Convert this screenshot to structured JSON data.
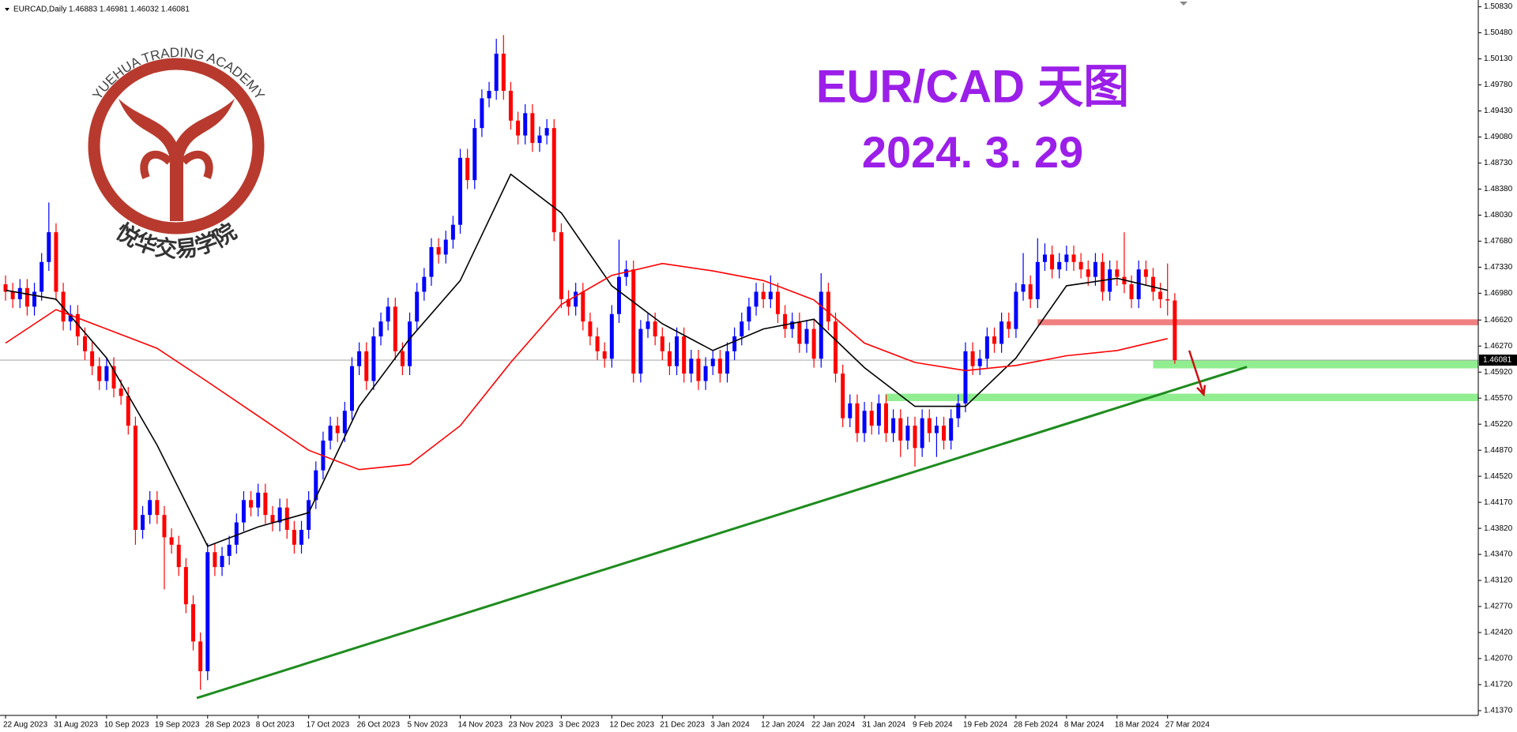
{
  "chart_data": {
    "type": "candlestick",
    "header": "EURCAD,Daily  1.46883 1.46981 1.46032 1.46081",
    "title": "EUR/CAD 天图",
    "subtitle": "2024. 3. 29",
    "up_color": "#0000ff",
    "down_color": "#ff0000",
    "ylim": [
      1.41306,
      1.50921
    ],
    "yticks": [
      {
        "value": 1.4137,
        "label": "1.41370"
      },
      {
        "value": 1.4172,
        "label": "1.41720"
      },
      {
        "value": 1.4207,
        "label": "1.42070"
      },
      {
        "value": 1.4242,
        "label": "1.42420"
      },
      {
        "value": 1.4277,
        "label": "1.42770"
      },
      {
        "value": 1.4312,
        "label": "1.43120"
      },
      {
        "value": 1.4347,
        "label": "1.43470"
      },
      {
        "value": 1.4382,
        "label": "1.43820"
      },
      {
        "value": 1.4417,
        "label": "1.44170"
      },
      {
        "value": 1.4452,
        "label": "1.44520"
      },
      {
        "value": 1.4487,
        "label": "1.44870"
      },
      {
        "value": 1.4522,
        "label": "1.45220"
      },
      {
        "value": 1.4557,
        "label": "1.45570"
      },
      {
        "value": 1.4592,
        "label": "1.45920"
      },
      {
        "value": 1.4627,
        "label": "1.46270"
      },
      {
        "value": 1.4662,
        "label": "1.46620"
      },
      {
        "value": 1.4698,
        "label": "1.46980"
      },
      {
        "value": 1.4733,
        "label": "1.47330"
      },
      {
        "value": 1.4768,
        "label": "1.47680"
      },
      {
        "value": 1.4803,
        "label": "1.48030"
      },
      {
        "value": 1.4838,
        "label": "1.48380"
      },
      {
        "value": 1.4873,
        "label": "1.48730"
      },
      {
        "value": 1.4908,
        "label": "1.49080"
      },
      {
        "value": 1.4943,
        "label": "1.49430"
      },
      {
        "value": 1.4978,
        "label": "1.49780"
      },
      {
        "value": 1.5013,
        "label": "1.50130"
      },
      {
        "value": 1.5048,
        "label": "1.50480"
      },
      {
        "value": 1.5083,
        "label": "1.50830"
      }
    ],
    "dates": [
      "22 Aug 2023",
      "31 Aug 2023",
      "10 Sep 2023",
      "19 Sep 2023",
      "28 Sep 2023",
      "8 Oct 2023",
      "17 Oct 2023",
      "26 Oct 2023",
      "5 Nov 2023",
      "14 Nov 2023",
      "23 Nov 2023",
      "3 Dec 2023",
      "12 Dec 2023",
      "21 Dec 2023",
      "3 Jan 2024",
      "12 Jan 2024",
      "22 Jan 2024",
      "31 Jan 2024",
      "9 Feb 2024",
      "19 Feb 2024",
      "28 Feb 2024",
      "8 Mar 2024",
      "18 Mar 2024",
      "27 Mar 2024"
    ],
    "candles": [
      [
        1.471,
        1.4722,
        1.4688,
        1.47
      ],
      [
        1.47,
        1.4712,
        1.4678,
        1.469
      ],
      [
        1.469,
        1.4717,
        1.4678,
        1.4705
      ],
      [
        1.4705,
        1.4717,
        1.4668,
        1.468
      ],
      [
        1.468,
        1.4712,
        1.4668,
        1.47
      ],
      [
        1.47,
        1.4752,
        1.4688,
        1.474
      ],
      [
        1.474,
        1.482,
        1.4728,
        1.478
      ],
      [
        1.478,
        1.4792,
        1.4688,
        1.47
      ],
      [
        1.47,
        1.4712,
        1.4648,
        1.466
      ],
      [
        1.466,
        1.4682,
        1.4648,
        1.467
      ],
      [
        1.467,
        1.4682,
        1.4628,
        1.464
      ],
      [
        1.464,
        1.4652,
        1.4608,
        1.462
      ],
      [
        1.462,
        1.4632,
        1.4588,
        1.46
      ],
      [
        1.46,
        1.4612,
        1.4568,
        1.458
      ],
      [
        1.458,
        1.4612,
        1.4568,
        1.46
      ],
      [
        1.46,
        1.4612,
        1.4558,
        1.457
      ],
      [
        1.457,
        1.4582,
        1.4548,
        1.456
      ],
      [
        1.456,
        1.4572,
        1.4508,
        1.452
      ],
      [
        1.452,
        1.4532,
        1.436,
        1.438
      ],
      [
        1.438,
        1.4412,
        1.4368,
        1.44
      ],
      [
        1.44,
        1.4432,
        1.4388,
        1.442
      ],
      [
        1.442,
        1.4432,
        1.4388,
        1.44
      ],
      [
        1.44,
        1.4412,
        1.43,
        1.437
      ],
      [
        1.437,
        1.4382,
        1.4348,
        1.436
      ],
      [
        1.436,
        1.4372,
        1.4318,
        1.433
      ],
      [
        1.433,
        1.4342,
        1.4268,
        1.428
      ],
      [
        1.428,
        1.4292,
        1.4218,
        1.423
      ],
      [
        1.423,
        1.4242,
        1.4165,
        1.419
      ],
      [
        1.419,
        1.4362,
        1.4178,
        1.435
      ],
      [
        1.435,
        1.4362,
        1.4318,
        1.433
      ],
      [
        1.433,
        1.4357,
        1.4318,
        1.4345
      ],
      [
        1.4345,
        1.4372,
        1.4333,
        1.436
      ],
      [
        1.436,
        1.4402,
        1.4348,
        1.439
      ],
      [
        1.439,
        1.4432,
        1.4378,
        1.442
      ],
      [
        1.442,
        1.4432,
        1.4398,
        1.441
      ],
      [
        1.441,
        1.4442,
        1.4398,
        1.443
      ],
      [
        1.443,
        1.4442,
        1.4388,
        1.44
      ],
      [
        1.44,
        1.4412,
        1.4378,
        1.439
      ],
      [
        1.439,
        1.4422,
        1.4378,
        1.441
      ],
      [
        1.441,
        1.4422,
        1.4368,
        1.438
      ],
      [
        1.438,
        1.4392,
        1.4348,
        1.436
      ],
      [
        1.436,
        1.4392,
        1.4348,
        1.438
      ],
      [
        1.438,
        1.4432,
        1.4368,
        1.442
      ],
      [
        1.442,
        1.4472,
        1.4408,
        1.446
      ],
      [
        1.446,
        1.4512,
        1.4448,
        1.45
      ],
      [
        1.45,
        1.4532,
        1.4488,
        1.452
      ],
      [
        1.452,
        1.4532,
        1.4498,
        1.451
      ],
      [
        1.451,
        1.4552,
        1.4498,
        1.454
      ],
      [
        1.454,
        1.4612,
        1.4528,
        1.46
      ],
      [
        1.46,
        1.4632,
        1.4588,
        1.462
      ],
      [
        1.462,
        1.4632,
        1.4568,
        1.458
      ],
      [
        1.458,
        1.4652,
        1.4568,
        1.464
      ],
      [
        1.464,
        1.4672,
        1.4628,
        1.466
      ],
      [
        1.466,
        1.4692,
        1.4648,
        1.468
      ],
      [
        1.468,
        1.4692,
        1.4608,
        1.462
      ],
      [
        1.462,
        1.4632,
        1.4588,
        1.46
      ],
      [
        1.46,
        1.4672,
        1.4588,
        1.466
      ],
      [
        1.466,
        1.4712,
        1.4648,
        1.47
      ],
      [
        1.47,
        1.4732,
        1.4688,
        1.472
      ],
      [
        1.472,
        1.4772,
        1.4708,
        1.476
      ],
      [
        1.476,
        1.4772,
        1.4738,
        1.475
      ],
      [
        1.475,
        1.4782,
        1.4738,
        1.477
      ],
      [
        1.477,
        1.4802,
        1.4758,
        1.479
      ],
      [
        1.479,
        1.4892,
        1.4778,
        1.488
      ],
      [
        1.488,
        1.4892,
        1.4838,
        1.485
      ],
      [
        1.485,
        1.4932,
        1.4838,
        1.492
      ],
      [
        1.492,
        1.4972,
        1.4908,
        1.496
      ],
      [
        1.496,
        1.4982,
        1.4948,
        1.497
      ],
      [
        1.497,
        1.504,
        1.4958,
        1.502
      ],
      [
        1.502,
        1.5045,
        1.4958,
        1.497
      ],
      [
        1.497,
        1.4982,
        1.4918,
        1.493
      ],
      [
        1.493,
        1.4942,
        1.4898,
        1.491
      ],
      [
        1.491,
        1.4952,
        1.4898,
        1.494
      ],
      [
        1.494,
        1.4952,
        1.4888,
        1.49
      ],
      [
        1.49,
        1.4922,
        1.4888,
        1.491
      ],
      [
        1.491,
        1.4932,
        1.4898,
        1.492
      ],
      [
        1.492,
        1.4932,
        1.4768,
        1.478
      ],
      [
        1.478,
        1.4792,
        1.4678,
        1.469
      ],
      [
        1.469,
        1.4702,
        1.4668,
        1.468
      ],
      [
        1.468,
        1.4712,
        1.4668,
        1.47
      ],
      [
        1.47,
        1.4712,
        1.4648,
        1.466
      ],
      [
        1.466,
        1.4672,
        1.4628,
        1.464
      ],
      [
        1.464,
        1.4652,
        1.4608,
        1.462
      ],
      [
        1.462,
        1.4632,
        1.4598,
        1.461
      ],
      [
        1.461,
        1.4682,
        1.4598,
        1.467
      ],
      [
        1.467,
        1.477,
        1.4658,
        1.472
      ],
      [
        1.472,
        1.4742,
        1.4708,
        1.473
      ],
      [
        1.473,
        1.4742,
        1.4578,
        1.459
      ],
      [
        1.459,
        1.4662,
        1.4578,
        1.465
      ],
      [
        1.465,
        1.4672,
        1.4638,
        1.466
      ],
      [
        1.466,
        1.4672,
        1.4628,
        1.464
      ],
      [
        1.464,
        1.4652,
        1.4608,
        1.462
      ],
      [
        1.462,
        1.4632,
        1.4588,
        1.46
      ],
      [
        1.46,
        1.4652,
        1.4588,
        1.464
      ],
      [
        1.464,
        1.4652,
        1.4578,
        1.459
      ],
      [
        1.459,
        1.4622,
        1.4578,
        1.461
      ],
      [
        1.461,
        1.4622,
        1.4568,
        1.458
      ],
      [
        1.458,
        1.4612,
        1.4568,
        1.46
      ],
      [
        1.46,
        1.4622,
        1.4588,
        1.461
      ],
      [
        1.461,
        1.4622,
        1.4578,
        1.459
      ],
      [
        1.459,
        1.4632,
        1.4578,
        1.462
      ],
      [
        1.462,
        1.4652,
        1.4608,
        1.464
      ],
      [
        1.464,
        1.4672,
        1.4628,
        1.466
      ],
      [
        1.466,
        1.4692,
        1.4648,
        1.468
      ],
      [
        1.468,
        1.4712,
        1.4668,
        1.47
      ],
      [
        1.47,
        1.4712,
        1.4678,
        1.469
      ],
      [
        1.469,
        1.4722,
        1.4678,
        1.47
      ],
      [
        1.47,
        1.4712,
        1.4658,
        1.467
      ],
      [
        1.467,
        1.4682,
        1.4638,
        1.465
      ],
      [
        1.465,
        1.4672,
        1.4638,
        1.466
      ],
      [
        1.466,
        1.4672,
        1.4618,
        1.463
      ],
      [
        1.463,
        1.4662,
        1.4618,
        1.465
      ],
      [
        1.465,
        1.4662,
        1.4598,
        1.461
      ],
      [
        1.461,
        1.4725,
        1.4598,
        1.47
      ],
      [
        1.47,
        1.4712,
        1.4648,
        1.466
      ],
      [
        1.466,
        1.4672,
        1.4578,
        1.459
      ],
      [
        1.459,
        1.4602,
        1.4518,
        1.453
      ],
      [
        1.453,
        1.4562,
        1.4518,
        1.455
      ],
      [
        1.455,
        1.4562,
        1.4498,
        1.451
      ],
      [
        1.451,
        1.4552,
        1.4498,
        1.454
      ],
      [
        1.454,
        1.4552,
        1.4508,
        1.452
      ],
      [
        1.452,
        1.4562,
        1.4508,
        1.455
      ],
      [
        1.455,
        1.4562,
        1.4498,
        1.451
      ],
      [
        1.451,
        1.4542,
        1.4498,
        1.453
      ],
      [
        1.453,
        1.4542,
        1.4478,
        1.45
      ],
      [
        1.45,
        1.4532,
        1.4488,
        1.452
      ],
      [
        1.452,
        1.4532,
        1.4465,
        1.449
      ],
      [
        1.449,
        1.4542,
        1.4478,
        1.453
      ],
      [
        1.453,
        1.4542,
        1.4498,
        1.451
      ],
      [
        1.451,
        1.4532,
        1.4478,
        1.452
      ],
      [
        1.452,
        1.4532,
        1.4488,
        1.45
      ],
      [
        1.45,
        1.4542,
        1.4488,
        1.453
      ],
      [
        1.453,
        1.4562,
        1.4518,
        1.455
      ],
      [
        1.455,
        1.4632,
        1.4538,
        1.462
      ],
      [
        1.462,
        1.4632,
        1.4588,
        1.46
      ],
      [
        1.46,
        1.4622,
        1.4588,
        1.461
      ],
      [
        1.461,
        1.4652,
        1.4598,
        1.464
      ],
      [
        1.464,
        1.4652,
        1.4618,
        1.463
      ],
      [
        1.463,
        1.4672,
        1.4618,
        1.466
      ],
      [
        1.466,
        1.4672,
        1.4638,
        1.465
      ],
      [
        1.465,
        1.4712,
        1.4638,
        1.47
      ],
      [
        1.47,
        1.4752,
        1.4688,
        1.471
      ],
      [
        1.471,
        1.4722,
        1.4678,
        1.469
      ],
      [
        1.469,
        1.4772,
        1.4678,
        1.474
      ],
      [
        1.474,
        1.4765,
        1.4728,
        1.475
      ],
      [
        1.475,
        1.4762,
        1.4718,
        1.473
      ],
      [
        1.473,
        1.4752,
        1.4718,
        1.474
      ],
      [
        1.474,
        1.4762,
        1.4728,
        1.475
      ],
      [
        1.475,
        1.4762,
        1.4728,
        1.474
      ],
      [
        1.474,
        1.4752,
        1.4718,
        1.473
      ],
      [
        1.473,
        1.4742,
        1.4708,
        1.472
      ],
      [
        1.472,
        1.4752,
        1.4708,
        1.474
      ],
      [
        1.474,
        1.4752,
        1.4688,
        1.47
      ],
      [
        1.47,
        1.4742,
        1.4688,
        1.473
      ],
      [
        1.473,
        1.4742,
        1.4708,
        1.472
      ],
      [
        1.472,
        1.478,
        1.4698,
        1.471
      ],
      [
        1.471,
        1.4722,
        1.4678,
        1.469
      ],
      [
        1.469,
        1.4742,
        1.4678,
        1.473
      ],
      [
        1.473,
        1.4742,
        1.4708,
        1.472
      ],
      [
        1.472,
        1.4732,
        1.4688,
        1.47
      ],
      [
        1.47,
        1.4712,
        1.4678,
        1.469
      ],
      [
        1.469,
        1.4738,
        1.4668,
        1.46883
      ],
      [
        1.46883,
        1.46981,
        1.46032,
        1.46081
      ]
    ],
    "series": [
      {
        "color": "#000000",
        "values": [
          1.4702,
          1.469,
          1.4611,
          1.4494,
          1.4358,
          1.4384,
          1.4403,
          1.4546,
          1.4637,
          1.4715,
          1.4858,
          1.4806,
          1.4708,
          1.4657,
          1.4621,
          1.465,
          1.4663,
          1.4598,
          1.4546,
          1.4546,
          1.4611,
          1.4708,
          1.4718,
          1.4702
        ]
      },
      {
        "color": "#ff0000",
        "values": [
          1.4631,
          1.4676,
          1.465,
          1.4624,
          1.4579,
          1.4533,
          1.4487,
          1.4461,
          1.4468,
          1.452,
          1.4605,
          1.4683,
          1.4722,
          1.4738,
          1.4728,
          1.4715,
          1.4689,
          1.4631,
          1.4605,
          1.4594,
          1.4601,
          1.4614,
          1.4621,
          1.4637
        ]
      }
    ],
    "zones": [
      {
        "color": "#f08080",
        "start": 143,
        "ymin": 1.4655,
        "ymax": 1.4663
      },
      {
        "color": "#90ee90",
        "start": 159,
        "ymin": 1.4597,
        "ymax": 1.4608
      },
      {
        "color": "#90ee90",
        "start": 122,
        "ymin": 1.4553,
        "ymax": 1.4563
      }
    ],
    "trendline": {
      "color": "#1e8c1e",
      "x": [
        26.5,
        172
      ],
      "values": [
        1.4154,
        1.4599
      ]
    },
    "arrow": {
      "color": "#cc1111",
      "x": [
        164,
        166
      ],
      "values": [
        1.4621,
        1.4562
      ]
    }
  },
  "logo": {
    "arc_text": "YUEHUA TRADING ACADEMY",
    "cn_text": "悦华交易学院"
  }
}
